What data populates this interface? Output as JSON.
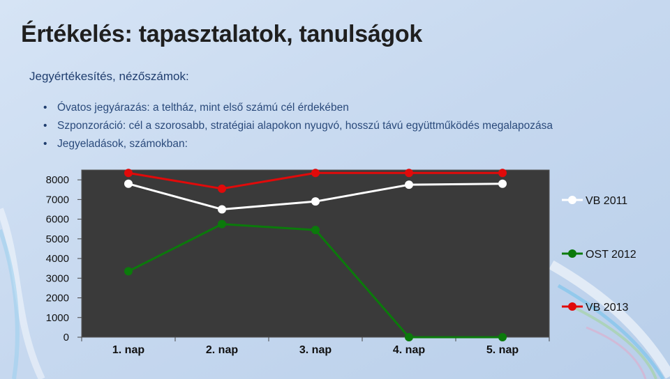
{
  "slide": {
    "title": "Értékelés: tapasztalatok, tanulságok",
    "subtitle": "Jegyértékesítés, nézőszámok:",
    "bullets": [
      "Óvatos jegyárazás: a teltház, mint első számú cél érdekében",
      "Szponzoráció: cél a szorosabb, stratégiai alapokon nyugvó, hosszú távú együttműködés megalapozása",
      "Jegyeladások, számokban:"
    ]
  },
  "colors": {
    "background": "#c9daf1",
    "plot_area": "#3a3a3a",
    "vb2011": "#ffffff",
    "ost2012": "#0b7a0b",
    "vb2013": "#e10a0a"
  },
  "chart_data": {
    "type": "line",
    "categories": [
      "1. nap",
      "2. nap",
      "3. nap",
      "4. nap",
      "5. nap"
    ],
    "yticks": [
      0,
      1000,
      2000,
      3000,
      4000,
      5000,
      6000,
      7000,
      8000
    ],
    "ylim": [
      0,
      8500
    ],
    "grid": false,
    "legend_position": "right",
    "series": [
      {
        "name": "VB 2011",
        "values": [
          7800,
          6500,
          6900,
          7750,
          7800
        ]
      },
      {
        "name": "OST 2012",
        "values": [
          3350,
          5750,
          5450,
          0,
          0
        ]
      },
      {
        "name": "VB 2013",
        "values": [
          8350,
          7550,
          8350,
          8350,
          8350
        ]
      }
    ]
  }
}
